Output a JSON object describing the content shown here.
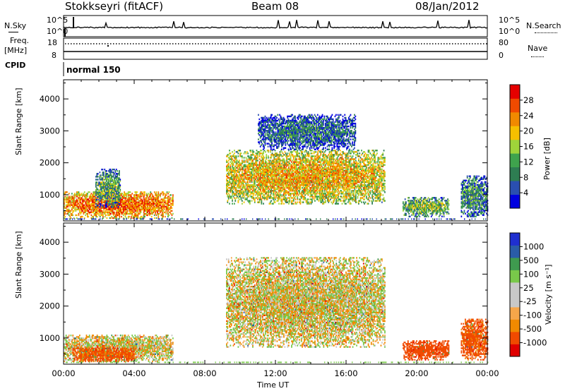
{
  "header": {
    "title": "Stokkseyri (fitACF)",
    "beam": "Beam 08",
    "date": "08/Jan/2012"
  },
  "strip": {
    "nsky_label": "N.Sky",
    "nsearch_label": "N.Search",
    "noise_ticks": [
      "10^5",
      "10^0"
    ],
    "freq_label": "Freq.",
    "freq_unit": "[MHz]",
    "freq_ticks": [
      "18",
      "8"
    ],
    "nave_label": "Nave",
    "nave_ticks": [
      "80",
      "0"
    ],
    "cpid_label": "CPID",
    "cpid_value": "normal 150"
  },
  "colors": {
    "power_scale": [
      "#0000e0",
      "#2a4fb0",
      "#2e7d52",
      "#3fa34d",
      "#9fd43a",
      "#f6c000",
      "#f08a00",
      "#f04a00",
      "#e60000"
    ],
    "velocity_scale": [
      "#e00000",
      "#f04a00",
      "#f08a00",
      "#f6a64a",
      "#c8c8c8",
      "#c8c8c8",
      "#79c94a",
      "#3f9a4f",
      "#2a5ca8",
      "#1f2fd0"
    ]
  },
  "chart_data": [
    {
      "type": "heatmap",
      "panel": "power",
      "xlabel": "",
      "ylabel": "Slant Range [km]",
      "x_ticks": [
        "00:00",
        "04:00",
        "08:00",
        "12:00",
        "16:00",
        "20:00",
        "00:00"
      ],
      "y_ticks": [
        "1000",
        "2000",
        "3000",
        "4000"
      ],
      "xlim_hours": [
        0,
        24
      ],
      "ylim_km": [
        180,
        4600
      ],
      "colorbar": {
        "label": "Power [dB]",
        "ticks": [
          "28",
          "24",
          "20",
          "16",
          "12",
          "8",
          "4"
        ],
        "range": [
          0,
          30
        ]
      },
      "echo_regions": [
        {
          "t0": 0.0,
          "t1": 6.2,
          "r0": 250,
          "r1": 1100,
          "level": 24
        },
        {
          "t0": 1.8,
          "t1": 3.2,
          "r0": 600,
          "r1": 1800,
          "level": 12
        },
        {
          "t0": 9.2,
          "t1": 18.2,
          "r0": 700,
          "r1": 2400,
          "level": 20
        },
        {
          "t0": 11.0,
          "t1": 16.5,
          "r0": 2400,
          "r1": 3500,
          "level": 8
        },
        {
          "t0": 19.2,
          "t1": 21.8,
          "r0": 300,
          "r1": 900,
          "level": 14
        },
        {
          "t0": 22.5,
          "t1": 24.0,
          "r0": 300,
          "r1": 1600,
          "level": 10
        }
      ]
    },
    {
      "type": "heatmap",
      "panel": "velocity",
      "xlabel": "Time UT",
      "ylabel": "Slant Range [km]",
      "x_ticks": [
        "00:00",
        "04:00",
        "08:00",
        "12:00",
        "16:00",
        "20:00",
        "00:00"
      ],
      "y_ticks": [
        "1000",
        "2000",
        "3000",
        "4000"
      ],
      "xlim_hours": [
        0,
        24
      ],
      "ylim_km": [
        180,
        4600
      ],
      "colorbar": {
        "label": "Velocity  [m s⁻¹]",
        "ticks": [
          "1000",
          "500",
          "100",
          "25",
          "-25",
          "-100",
          "-500",
          "-1000"
        ],
        "range": [
          -1000,
          1000
        ]
      },
      "echo_regions": [
        {
          "t0": 0.0,
          "t1": 6.2,
          "r0": 250,
          "r1": 1100,
          "velocity": 0
        },
        {
          "t0": 0.5,
          "t1": 4.0,
          "r0": 250,
          "r1": 700,
          "velocity": -150
        },
        {
          "t0": 9.2,
          "t1": 18.2,
          "r0": 700,
          "r1": 3500,
          "velocity": 0
        },
        {
          "t0": 19.2,
          "t1": 21.8,
          "r0": 300,
          "r1": 900,
          "velocity": -300
        },
        {
          "t0": 22.5,
          "t1": 24.0,
          "r0": 300,
          "r1": 1600,
          "velocity": -150
        }
      ]
    }
  ]
}
